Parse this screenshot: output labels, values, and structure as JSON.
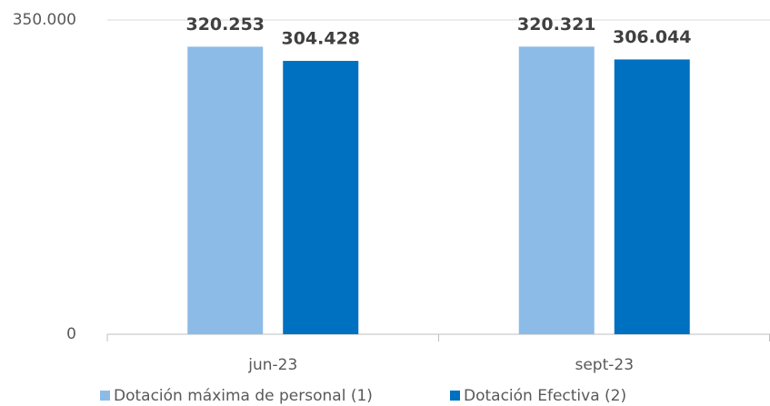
{
  "chart_data": {
    "type": "bar",
    "categories": [
      "jun-23",
      "sept-23"
    ],
    "series": [
      {
        "name": "Dotación máxima de personal (1)",
        "color": "#8dbbe7",
        "values": [
          320253,
          320321
        ],
        "value_labels": [
          "320.253",
          "320.321"
        ]
      },
      {
        "name": "Dotación Efectiva (2)",
        "color": "#0070c0",
        "values": [
          304428,
          306044
        ],
        "value_labels": [
          "304.428",
          "306.044"
        ]
      }
    ],
    "ylim": [
      0,
      350000
    ],
    "yticks": [
      0,
      {
        "value": 350000,
        "label": "350.000"
      }
    ],
    "grid": true,
    "legend": "bottom"
  }
}
